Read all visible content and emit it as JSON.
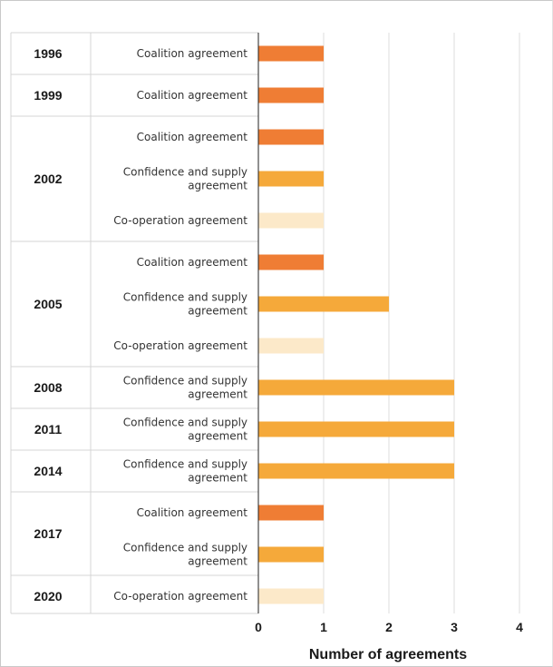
{
  "chart_data": {
    "type": "bar",
    "orientation": "horizontal",
    "xlabel": "Number of agreements",
    "xlim": [
      0,
      4
    ],
    "xticks": [
      0,
      1,
      2,
      3,
      4
    ],
    "grid": true,
    "colors": {
      "Coalition agreement": "#ef7d34",
      "Confidence and supply agreement": "#f5a93a",
      "Co-operation agreement": "#fce9c9"
    },
    "groups": [
      {
        "year": "1996",
        "rows": [
          {
            "category": "Coalition agreement",
            "lines": [
              "Coalition agreement"
            ],
            "value": 1
          }
        ]
      },
      {
        "year": "1999",
        "rows": [
          {
            "category": "Coalition agreement",
            "lines": [
              "Coalition agreement"
            ],
            "value": 1
          }
        ]
      },
      {
        "year": "2002",
        "rows": [
          {
            "category": "Coalition agreement",
            "lines": [
              "Coalition agreement"
            ],
            "value": 1
          },
          {
            "category": "Confidence and supply agreement",
            "lines": [
              "Confidence and supply",
              "agreement"
            ],
            "value": 1
          },
          {
            "category": "Co-operation agreement",
            "lines": [
              "Co-operation agreement"
            ],
            "value": 1
          }
        ]
      },
      {
        "year": "2005",
        "rows": [
          {
            "category": "Coalition agreement",
            "lines": [
              "Coalition agreement"
            ],
            "value": 1
          },
          {
            "category": "Confidence and supply agreement",
            "lines": [
              "Confidence and supply",
              "agreement"
            ],
            "value": 2
          },
          {
            "category": "Co-operation agreement",
            "lines": [
              "Co-operation agreement"
            ],
            "value": 1
          }
        ]
      },
      {
        "year": "2008",
        "rows": [
          {
            "category": "Confidence and supply agreement",
            "lines": [
              "Confidence and supply",
              "agreement"
            ],
            "value": 3
          }
        ]
      },
      {
        "year": "2011",
        "rows": [
          {
            "category": "Confidence and supply agreement",
            "lines": [
              "Confidence and supply",
              "agreement"
            ],
            "value": 3
          }
        ]
      },
      {
        "year": "2014",
        "rows": [
          {
            "category": "Confidence and supply agreement",
            "lines": [
              "Confidence and supply",
              "agreement"
            ],
            "value": 3
          }
        ]
      },
      {
        "year": "2017",
        "rows": [
          {
            "category": "Coalition agreement",
            "lines": [
              "Coalition agreement"
            ],
            "value": 1
          },
          {
            "category": "Confidence and supply agreement",
            "lines": [
              "Confidence and supply",
              "agreement"
            ],
            "value": 1
          }
        ]
      },
      {
        "year": "2020",
        "rows": [
          {
            "category": "Co-operation agreement",
            "lines": [
              "Co-operation agreement"
            ],
            "value": 1
          }
        ]
      }
    ]
  }
}
